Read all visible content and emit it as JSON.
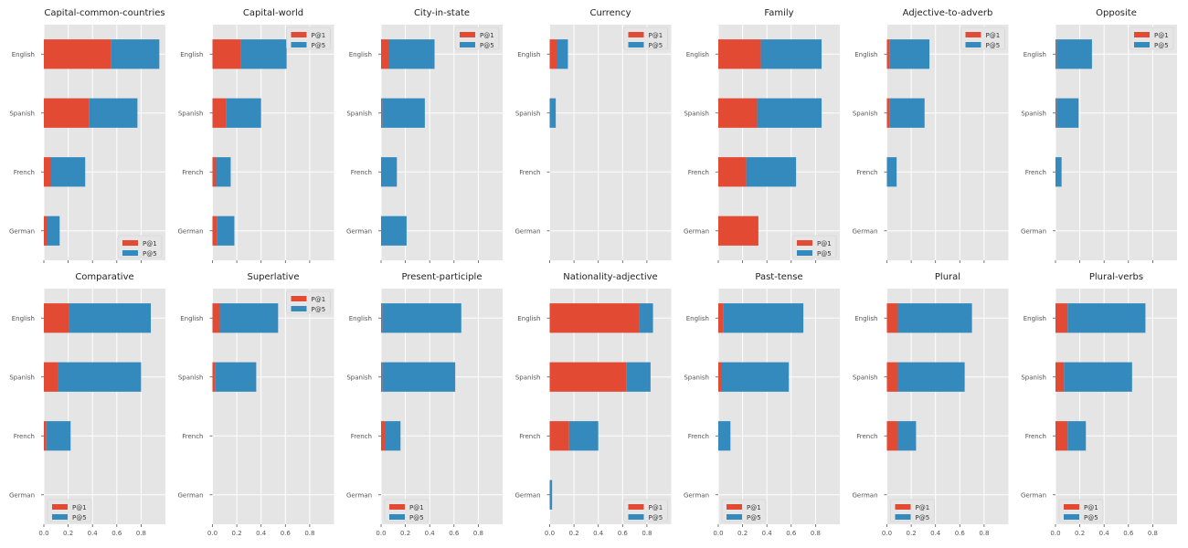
{
  "colors": {
    "p1": "#E24A33",
    "p5": "#348ABD",
    "panel_bg": "#E5E5E5",
    "grid": "#FFFFFF"
  },
  "chart_data": [
    {
      "type": "bar",
      "orientation": "horizontal",
      "stacked": true,
      "title": "Capital-common-countries",
      "categories": [
        "English",
        "Spanish",
        "French",
        "German"
      ],
      "xlim": [
        0,
        1
      ],
      "series": [
        {
          "name": "P@1",
          "values": [
            0.55,
            0.37,
            0.06,
            0.03
          ]
        },
        {
          "name": "P@5",
          "values": [
            0.4,
            0.4,
            0.28,
            0.1
          ]
        }
      ],
      "legend": "lower-right",
      "x_ticks_labeled": false
    },
    {
      "type": "bar",
      "orientation": "horizontal",
      "stacked": true,
      "title": "Capital-world",
      "categories": [
        "English",
        "Spanish",
        "French",
        "German"
      ],
      "xlim": [
        0,
        1
      ],
      "series": [
        {
          "name": "P@1",
          "values": [
            0.23,
            0.11,
            0.03,
            0.04
          ]
        },
        {
          "name": "P@5",
          "values": [
            0.38,
            0.29,
            0.12,
            0.14
          ]
        }
      ],
      "legend": "upper-right",
      "x_ticks_labeled": false
    },
    {
      "type": "bar",
      "orientation": "horizontal",
      "stacked": true,
      "title": "City-in-state",
      "categories": [
        "English",
        "Spanish",
        "French",
        "German"
      ],
      "xlim": [
        0,
        1
      ],
      "series": [
        {
          "name": "P@1",
          "values": [
            0.06,
            0.01,
            0.0,
            0.0
          ]
        },
        {
          "name": "P@5",
          "values": [
            0.38,
            0.35,
            0.13,
            0.21
          ]
        }
      ],
      "legend": "upper-right",
      "x_ticks_labeled": false
    },
    {
      "type": "bar",
      "orientation": "horizontal",
      "stacked": true,
      "title": "Currency",
      "categories": [
        "English",
        "Spanish",
        "French",
        "German"
      ],
      "xlim": [
        0,
        1
      ],
      "series": [
        {
          "name": "P@1",
          "values": [
            0.06,
            0.0,
            0.0,
            0.0
          ]
        },
        {
          "name": "P@5",
          "values": [
            0.09,
            0.05,
            0.0,
            0.0
          ]
        }
      ],
      "legend": "upper-right",
      "x_ticks_labeled": false
    },
    {
      "type": "bar",
      "orientation": "horizontal",
      "stacked": true,
      "title": "Family",
      "categories": [
        "English",
        "Spanish",
        "French",
        "German"
      ],
      "xlim": [
        0,
        1
      ],
      "series": [
        {
          "name": "P@1",
          "values": [
            0.35,
            0.32,
            0.23,
            0.33
          ]
        },
        {
          "name": "P@5",
          "values": [
            0.5,
            0.53,
            0.41,
            0.0
          ]
        }
      ],
      "legend": "lower-right",
      "x_ticks_labeled": false
    },
    {
      "type": "bar",
      "orientation": "horizontal",
      "stacked": true,
      "title": "Adjective-to-adverb",
      "categories": [
        "English",
        "Spanish",
        "French",
        "German"
      ],
      "xlim": [
        0,
        1
      ],
      "series": [
        {
          "name": "P@1",
          "values": [
            0.02,
            0.02,
            0.0,
            0.0
          ]
        },
        {
          "name": "P@5",
          "values": [
            0.33,
            0.29,
            0.08,
            0.0
          ]
        }
      ],
      "legend": "upper-right",
      "x_ticks_labeled": false
    },
    {
      "type": "bar",
      "orientation": "horizontal",
      "stacked": true,
      "title": "Opposite",
      "categories": [
        "English",
        "Spanish",
        "French",
        "German"
      ],
      "xlim": [
        0,
        1
      ],
      "series": [
        {
          "name": "P@1",
          "values": [
            0.01,
            0.01,
            0.0,
            0.0
          ]
        },
        {
          "name": "P@5",
          "values": [
            0.29,
            0.18,
            0.05,
            0.0
          ]
        }
      ],
      "legend": "upper-right",
      "x_ticks_labeled": false
    },
    {
      "type": "bar",
      "orientation": "horizontal",
      "stacked": true,
      "title": "Comparative",
      "categories": [
        "English",
        "Spanish",
        "French",
        "German"
      ],
      "xlim": [
        0,
        1
      ],
      "series": [
        {
          "name": "P@1",
          "values": [
            0.21,
            0.12,
            0.02,
            0.0
          ]
        },
        {
          "name": "P@5",
          "values": [
            0.67,
            0.68,
            0.2,
            0.0
          ]
        }
      ],
      "legend": "lower-left",
      "x_ticks_labeled": true
    },
    {
      "type": "bar",
      "orientation": "horizontal",
      "stacked": true,
      "title": "Superlative",
      "categories": [
        "English",
        "Spanish",
        "French",
        "German"
      ],
      "xlim": [
        0,
        1
      ],
      "series": [
        {
          "name": "P@1",
          "values": [
            0.06,
            0.02,
            0.0,
            0.0
          ]
        },
        {
          "name": "P@5",
          "values": [
            0.48,
            0.34,
            0.0,
            0.0
          ]
        }
      ],
      "legend": "upper-right",
      "x_ticks_labeled": true
    },
    {
      "type": "bar",
      "orientation": "horizontal",
      "stacked": true,
      "title": "Present-participle",
      "categories": [
        "English",
        "Spanish",
        "French",
        "German"
      ],
      "xlim": [
        0,
        1
      ],
      "series": [
        {
          "name": "P@1",
          "values": [
            0.01,
            0.01,
            0.03,
            0.0
          ]
        },
        {
          "name": "P@5",
          "values": [
            0.65,
            0.6,
            0.13,
            0.0
          ]
        }
      ],
      "legend": "lower-left",
      "x_ticks_labeled": true
    },
    {
      "type": "bar",
      "orientation": "horizontal",
      "stacked": true,
      "title": "Nationality-adjective",
      "categories": [
        "English",
        "Spanish",
        "French",
        "German"
      ],
      "xlim": [
        0,
        1
      ],
      "series": [
        {
          "name": "P@1",
          "values": [
            0.74,
            0.63,
            0.16,
            0.0
          ]
        },
        {
          "name": "P@5",
          "values": [
            0.11,
            0.2,
            0.24,
            0.02
          ]
        }
      ],
      "legend": "lower-right",
      "x_ticks_labeled": true
    },
    {
      "type": "bar",
      "orientation": "horizontal",
      "stacked": true,
      "title": "Past-tense",
      "categories": [
        "English",
        "Spanish",
        "French",
        "German"
      ],
      "xlim": [
        0,
        1
      ],
      "series": [
        {
          "name": "P@1",
          "values": [
            0.04,
            0.03,
            0.0,
            0.0
          ]
        },
        {
          "name": "P@5",
          "values": [
            0.66,
            0.55,
            0.1,
            0.0
          ]
        }
      ],
      "legend": "lower-left",
      "x_ticks_labeled": true
    },
    {
      "type": "bar",
      "orientation": "horizontal",
      "stacked": true,
      "title": "Plural",
      "categories": [
        "English",
        "Spanish",
        "French",
        "German"
      ],
      "xlim": [
        0,
        1
      ],
      "series": [
        {
          "name": "P@1",
          "values": [
            0.09,
            0.09,
            0.09,
            0.0
          ]
        },
        {
          "name": "P@5",
          "values": [
            0.61,
            0.55,
            0.15,
            0.0
          ]
        }
      ],
      "legend": "lower-left",
      "x_ticks_labeled": true
    },
    {
      "type": "bar",
      "orientation": "horizontal",
      "stacked": true,
      "title": "Plural-verbs",
      "categories": [
        "English",
        "Spanish",
        "French",
        "German"
      ],
      "xlim": [
        0,
        1
      ],
      "series": [
        {
          "name": "P@1",
          "values": [
            0.1,
            0.07,
            0.1,
            0.0
          ]
        },
        {
          "name": "P@5",
          "values": [
            0.64,
            0.56,
            0.15,
            0.0
          ]
        }
      ],
      "legend": "lower-left",
      "x_ticks_labeled": true
    }
  ],
  "x_tick_labels": [
    "0.0",
    "0.2",
    "0.4",
    "0.6",
    "0.8"
  ]
}
